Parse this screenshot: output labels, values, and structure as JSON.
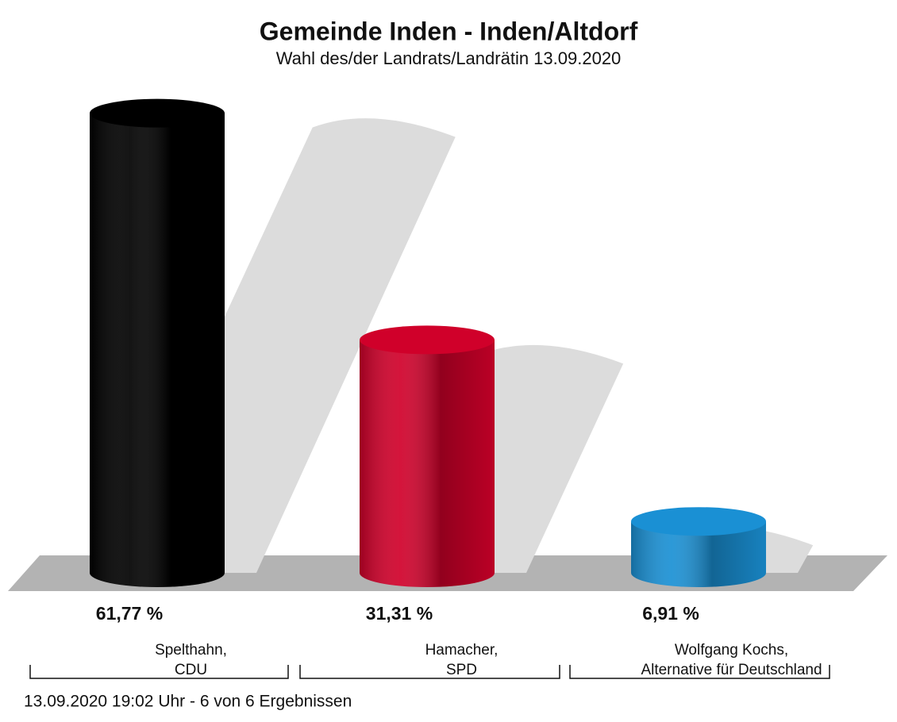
{
  "chart_data": {
    "type": "bar",
    "title": "Gemeinde Inden - Inden/Altdorf",
    "subtitle": "Wahl des/der Landrats/Landrätin 13.09.2020",
    "categories": [
      [
        "Spelthahn,",
        "CDU"
      ],
      [
        "Hamacher,",
        "SPD"
      ],
      [
        "Wolfgang Kochs,",
        "Alternative für Deutschland"
      ]
    ],
    "values": [
      61.77,
      31.31,
      6.91
    ],
    "value_labels": [
      "61,77 %",
      "31,31 %",
      "6,91 %"
    ],
    "colors": [
      "#000000",
      "#d0002a",
      "#1a90d4"
    ],
    "ylim": [
      0,
      66
    ],
    "footer": "13.09.2020 19:02 Uhr - 6 von 6 Ergebnissen"
  }
}
